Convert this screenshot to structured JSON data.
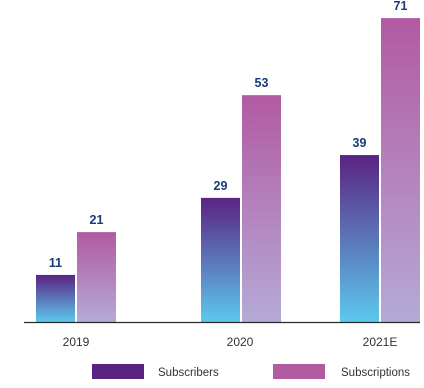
{
  "chart_data": {
    "type": "bar",
    "title": "",
    "xlabel": "",
    "ylabel": "",
    "categories": [
      "2019",
      "2020",
      "2021E"
    ],
    "series": [
      {
        "name": "Subscribers",
        "values": [
          11,
          29,
          39
        ]
      },
      {
        "name": "Subscriptions",
        "values": [
          21,
          53,
          71
        ]
      }
    ],
    "ylim": [
      0,
      75
    ],
    "grid": false,
    "data_labels": true,
    "legend_position": "bottom-center"
  },
  "colors": {
    "subscribers_top": "#5a2382",
    "subscribers_bottom": "#5cc8ee",
    "subscriptions_top": "#b25aa2",
    "subscriptions_bottom": "#b4aad6",
    "value_label": "#1b3a78",
    "axis": "#2a2a2a"
  }
}
